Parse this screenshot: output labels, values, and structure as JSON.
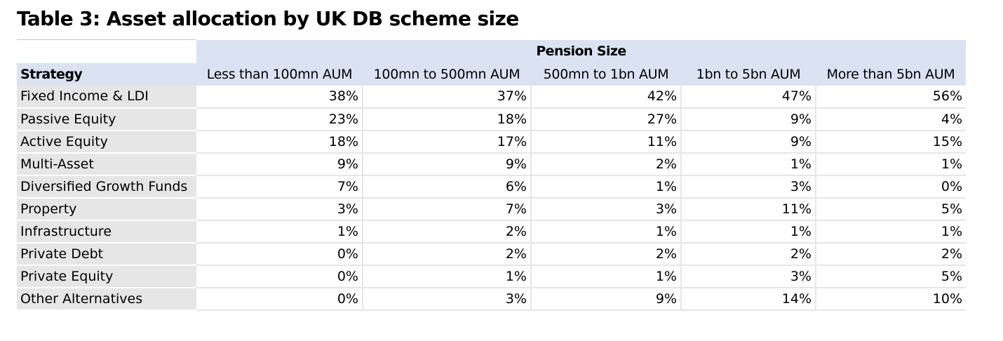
{
  "title": "Table 3: Asset allocation by UK DB scheme size",
  "table": {
    "group_header": "Pension Size",
    "row_header_title": "Strategy",
    "columns": [
      "Less than 100mn AUM",
      "100mn to 500mn AUM",
      "500mn to 1bn AUM",
      "1bn to 5bn AUM",
      "More than 5bn AUM"
    ],
    "rows": [
      {
        "label": "Fixed Income & LDI",
        "values": [
          "38%",
          "37%",
          "42%",
          "47%",
          "56%"
        ]
      },
      {
        "label": "Passive Equity",
        "values": [
          "23%",
          "18%",
          "27%",
          "9%",
          "4%"
        ]
      },
      {
        "label": "Active Equity",
        "values": [
          "18%",
          "17%",
          "11%",
          "9%",
          "15%"
        ]
      },
      {
        "label": "Multi-Asset",
        "values": [
          "9%",
          "9%",
          "2%",
          "1%",
          "1%"
        ]
      },
      {
        "label": "Diversified Growth Funds",
        "values": [
          "7%",
          "6%",
          "1%",
          "3%",
          "0%"
        ]
      },
      {
        "label": "Property",
        "values": [
          "3%",
          "7%",
          "3%",
          "11%",
          "5%"
        ]
      },
      {
        "label": "Infrastructure",
        "values": [
          "1%",
          "2%",
          "1%",
          "1%",
          "1%"
        ]
      },
      {
        "label": "Private Debt",
        "values": [
          "0%",
          "2%",
          "2%",
          "2%",
          "2%"
        ]
      },
      {
        "label": "Private Equity",
        "values": [
          "0%",
          "1%",
          "1%",
          "3%",
          "5%"
        ]
      },
      {
        "label": "Other Alternatives",
        "values": [
          "0%",
          "3%",
          "9%",
          "14%",
          "10%"
        ]
      }
    ]
  },
  "colors": {
    "header_blue": "#dbe3f3",
    "row_label_grey": "#e6e6e6"
  }
}
